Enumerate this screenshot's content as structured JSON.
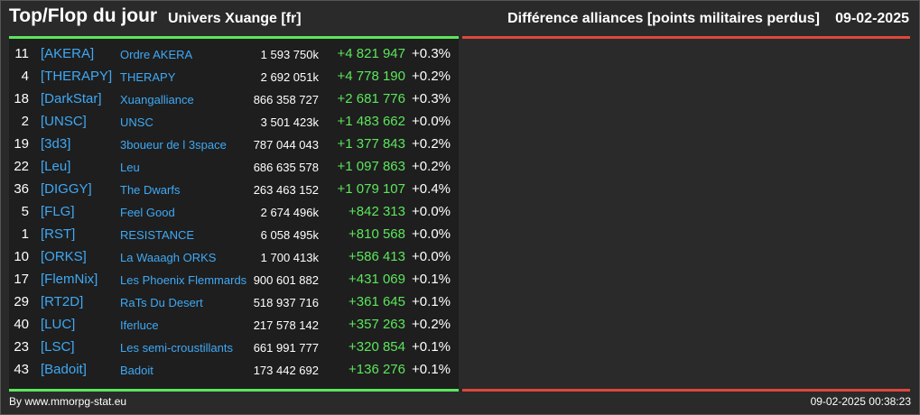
{
  "header": {
    "title": "Top/Flop du jour",
    "universe": "Univers Xuange [fr]",
    "subtitle": "Différence alliances [points militaires perdus]",
    "date": "09-02-2025"
  },
  "colors": {
    "top_bar": "#5ce65c",
    "flop_bar": "#e0463a",
    "link": "#3fa9f5",
    "positive": "#5ce65c"
  },
  "rows": [
    {
      "rank": "11",
      "tag": "[AKERA]",
      "name": "Ordre AKERA",
      "points": "1 593 750k",
      "diff": "+4 821 947",
      "pct": "+0.3%"
    },
    {
      "rank": "4",
      "tag": "[THERAPY]",
      "name": "THERAPY",
      "points": "2 692 051k",
      "diff": "+4 778 190",
      "pct": "+0.2%"
    },
    {
      "rank": "18",
      "tag": "[DarkStar]",
      "name": "Xuangalliance",
      "points": "866 358 727",
      "diff": "+2 681 776",
      "pct": "+0.3%"
    },
    {
      "rank": "2",
      "tag": "[UNSC]",
      "name": "UNSC",
      "points": "3 501 423k",
      "diff": "+1 483 662",
      "pct": "+0.0%"
    },
    {
      "rank": "19",
      "tag": "[3d3]",
      "name": "3boueur de l 3space",
      "points": "787 044 043",
      "diff": "+1 377 843",
      "pct": "+0.2%"
    },
    {
      "rank": "22",
      "tag": "[Leu]",
      "name": "Leu",
      "points": "686 635 578",
      "diff": "+1 097 863",
      "pct": "+0.2%"
    },
    {
      "rank": "36",
      "tag": "[DIGGY]",
      "name": "The Dwarfs",
      "points": "263 463 152",
      "diff": "+1 079 107",
      "pct": "+0.4%"
    },
    {
      "rank": "5",
      "tag": "[FLG]",
      "name": "Feel Good",
      "points": "2 674 496k",
      "diff": "+842 313",
      "pct": "+0.0%"
    },
    {
      "rank": "1",
      "tag": "[RST]",
      "name": "RESISTANCE",
      "points": "6 058 495k",
      "diff": "+810 568",
      "pct": "+0.0%"
    },
    {
      "rank": "10",
      "tag": "[ORKS]",
      "name": "La Waaagh ORKS",
      "points": "1 700 413k",
      "diff": "+586 413",
      "pct": "+0.0%"
    },
    {
      "rank": "17",
      "tag": "[FlemNix]",
      "name": "Les Phoenix Flemmards",
      "points": "900 601 882",
      "diff": "+431 069",
      "pct": "+0.1%"
    },
    {
      "rank": "29",
      "tag": "[RT2D]",
      "name": "RaTs Du Desert",
      "points": "518 937 716",
      "diff": "+361 645",
      "pct": "+0.1%"
    },
    {
      "rank": "40",
      "tag": "[LUC]",
      "name": "Iferluce",
      "points": "217 578 142",
      "diff": "+357 263",
      "pct": "+0.2%"
    },
    {
      "rank": "23",
      "tag": "[LSC]",
      "name": "Les semi-croustillants",
      "points": "661 991 777",
      "diff": "+320 854",
      "pct": "+0.1%"
    },
    {
      "rank": "43",
      "tag": "[Badoit]",
      "name": "Badoit",
      "points": "173 442 692",
      "diff": "+136 276",
      "pct": "+0.1%"
    }
  ],
  "footer": {
    "credit": "By www.mmorpg-stat.eu",
    "timestamp": "09-02-2025 00:38:23"
  }
}
